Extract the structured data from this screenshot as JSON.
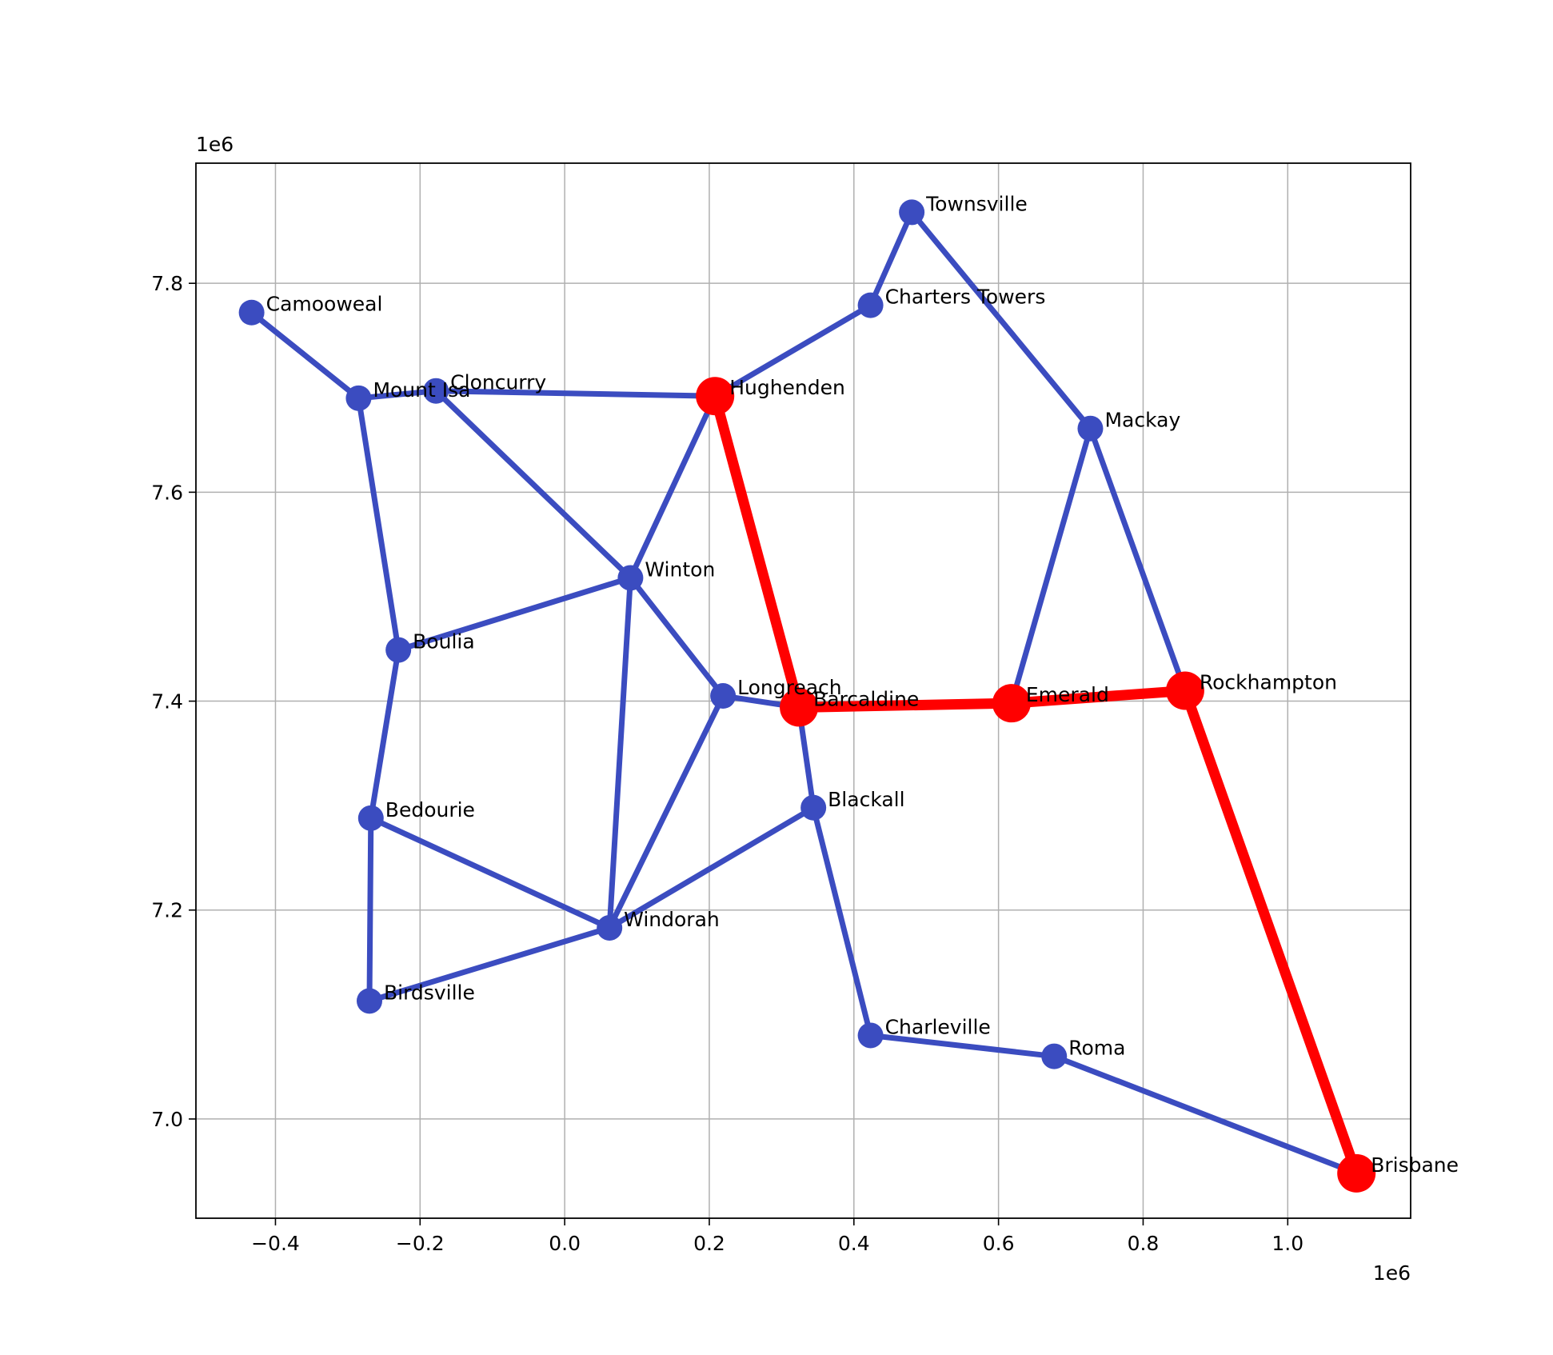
{
  "chart_data": {
    "type": "network",
    "xlim": [
      -0.51,
      1.17
    ],
    "ylim": [
      6.905,
      7.915
    ],
    "x_offset_label": "1e6",
    "y_offset_label": "1e6",
    "x_ticks": [
      -0.4,
      -0.2,
      0.0,
      0.2,
      0.4,
      0.6,
      0.8,
      1.0
    ],
    "x_tick_labels": [
      "−0.4",
      "−0.2",
      "0.0",
      "0.2",
      "0.4",
      "0.6",
      "0.8",
      "1.0"
    ],
    "y_ticks": [
      7.0,
      7.2,
      7.4,
      7.6,
      7.8
    ],
    "y_tick_labels": [
      "7.0",
      "7.2",
      "7.4",
      "7.6",
      "7.8"
    ],
    "grid": true,
    "colors": {
      "network": "#3b4cc0",
      "path": "#ff0000",
      "grid": "#b0b0b0"
    },
    "nodes": [
      {
        "name": "Camooweal",
        "x": -0.433,
        "y": 7.772
      },
      {
        "name": "Mount Isa",
        "x": -0.285,
        "y": 7.69
      },
      {
        "name": "Cloncurry",
        "x": -0.178,
        "y": 7.697
      },
      {
        "name": "Hughenden",
        "x": 0.208,
        "y": 7.692,
        "highlight": true
      },
      {
        "name": "Charters Towers",
        "x": 0.423,
        "y": 7.779
      },
      {
        "name": "Townsville",
        "x": 0.48,
        "y": 7.868
      },
      {
        "name": "Mackay",
        "x": 0.727,
        "y": 7.661
      },
      {
        "name": "Winton",
        "x": 0.091,
        "y": 7.518
      },
      {
        "name": "Boulia",
        "x": -0.23,
        "y": 7.449
      },
      {
        "name": "Longreach",
        "x": 0.219,
        "y": 7.405
      },
      {
        "name": "Barcaldine",
        "x": 0.324,
        "y": 7.394,
        "highlight": true
      },
      {
        "name": "Emerald",
        "x": 0.618,
        "y": 7.398,
        "highlight": true
      },
      {
        "name": "Rockhampton",
        "x": 0.858,
        "y": 7.41,
        "highlight": true
      },
      {
        "name": "Blackall",
        "x": 0.344,
        "y": 7.298
      },
      {
        "name": "Bedourie",
        "x": -0.268,
        "y": 7.288
      },
      {
        "name": "Windorah",
        "x": 0.062,
        "y": 7.183
      },
      {
        "name": "Birdsville",
        "x": -0.27,
        "y": 7.113
      },
      {
        "name": "Charleville",
        "x": 0.423,
        "y": 7.08
      },
      {
        "name": "Roma",
        "x": 0.677,
        "y": 7.06
      },
      {
        "name": "Brisbane",
        "x": 1.095,
        "y": 6.948,
        "highlight": true
      }
    ],
    "edges": [
      [
        "Camooweal",
        "Mount Isa"
      ],
      [
        "Mount Isa",
        "Cloncurry"
      ],
      [
        "Mount Isa",
        "Boulia"
      ],
      [
        "Cloncurry",
        "Hughenden"
      ],
      [
        "Cloncurry",
        "Winton"
      ],
      [
        "Hughenden",
        "Charters Towers"
      ],
      [
        "Charters Towers",
        "Townsville"
      ],
      [
        "Townsville",
        "Mackay"
      ],
      [
        "Mackay",
        "Emerald"
      ],
      [
        "Mackay",
        "Rockhampton"
      ],
      [
        "Hughenden",
        "Winton"
      ],
      [
        "Winton",
        "Boulia"
      ],
      [
        "Winton",
        "Longreach"
      ],
      [
        "Winton",
        "Windorah"
      ],
      [
        "Longreach",
        "Barcaldine"
      ],
      [
        "Longreach",
        "Windorah"
      ],
      [
        "Barcaldine",
        "Blackall"
      ],
      [
        "Blackall",
        "Windorah"
      ],
      [
        "Blackall",
        "Charleville"
      ],
      [
        "Boulia",
        "Bedourie"
      ],
      [
        "Bedourie",
        "Birdsville"
      ],
      [
        "Bedourie",
        "Windorah"
      ],
      [
        "Birdsville",
        "Windorah"
      ],
      [
        "Charleville",
        "Roma"
      ],
      [
        "Roma",
        "Brisbane"
      ]
    ],
    "path": [
      "Hughenden",
      "Barcaldine",
      "Emerald",
      "Rockhampton",
      "Brisbane"
    ]
  }
}
